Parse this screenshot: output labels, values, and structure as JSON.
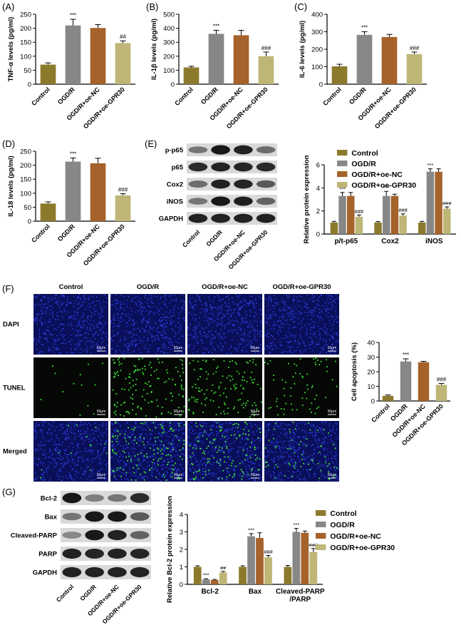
{
  "colors": {
    "control": "#8c7a2c",
    "ogdr": "#878787",
    "oe_nc": "#a5622a",
    "oe_gpr30": "#bdb677",
    "dapi_bg": "#0a0f5a",
    "dapi_dot": "#2b3bd6",
    "tunel_bg": "#050805",
    "tunel_dot": "#3ee03a",
    "axis": "#000000"
  },
  "legend_labels": [
    "Control",
    "OGD/R",
    "OGD/R+oe-NC",
    "OGD/R+oe-GPR30"
  ],
  "groups": [
    "Control",
    "OGD/R",
    "OGD/R+oe-NC",
    "OGD/R+oe-GPR30"
  ],
  "panel_letters": {
    "A": "(A)",
    "B": "(B)",
    "C": "(C)",
    "D": "(D)",
    "E": "(E)",
    "F": "(F)",
    "G": "(G)"
  },
  "blots": {
    "e_rows": [
      "p-p65",
      "p65",
      "Cox2",
      "iNOS",
      "GAPDH"
    ],
    "g_rows": [
      "Bcl-2",
      "Bax",
      "Cleaved-PARP",
      "PARP",
      "GAPDH"
    ],
    "e_intensity": [
      [
        0.45,
        0.95,
        0.9,
        0.5
      ],
      [
        0.85,
        0.9,
        0.88,
        0.86
      ],
      [
        0.5,
        0.9,
        0.88,
        0.6
      ],
      [
        0.45,
        0.95,
        0.92,
        0.55
      ],
      [
        0.9,
        0.9,
        0.9,
        0.9
      ]
    ],
    "g_intensity": [
      [
        0.95,
        0.4,
        0.45,
        0.85
      ],
      [
        0.45,
        0.95,
        0.95,
        0.6
      ],
      [
        0.35,
        0.95,
        0.9,
        0.55
      ],
      [
        0.9,
        0.88,
        0.9,
        0.88
      ],
      [
        0.9,
        0.9,
        0.9,
        0.9
      ]
    ]
  },
  "microscopy": {
    "col_headers": [
      "Control",
      "OGD/R",
      "OGD/R+oe-NC",
      "OGD/R+oe-GPR30"
    ],
    "row_labels": [
      "DAPI",
      "TUNEL",
      "Merged"
    ],
    "scale_bar": "50μm",
    "tunel_density": [
      0.05,
      0.55,
      0.5,
      0.25
    ]
  },
  "chart_data": [
    {
      "id": "A",
      "type": "bar",
      "categories": [
        "Control",
        "OGD/R",
        "OGD/R+oe-NC",
        "OGD/R+oe-GPR30"
      ],
      "values": [
        70,
        210,
        201,
        147
      ],
      "errors": [
        6,
        22,
        12,
        8
      ],
      "annotations": [
        "",
        "***",
        "",
        "##"
      ],
      "ylabel": "TNF-α levels (pg/ml)",
      "ylim": [
        0,
        250
      ],
      "yticks": [
        0,
        50,
        100,
        150,
        200,
        250
      ]
    },
    {
      "id": "B",
      "type": "bar",
      "categories": [
        "Control",
        "OGD/R",
        "OGD/R+oe-NC",
        "OGD/R+oe-GPR30"
      ],
      "values": [
        120,
        360,
        350,
        200
      ],
      "errors": [
        8,
        25,
        35,
        30
      ],
      "annotations": [
        "",
        "***",
        "",
        "###"
      ],
      "ylabel": "IL-1β levels (pg/ml)",
      "ylim": [
        0,
        500
      ],
      "yticks": [
        0,
        100,
        200,
        300,
        400,
        500
      ]
    },
    {
      "id": "C",
      "type": "bar",
      "categories": [
        "Control",
        "OGD/R",
        "OGD/R+oe-NC",
        "OGD/R+oe-GPR30"
      ],
      "values": [
        102,
        282,
        270,
        172
      ],
      "errors": [
        12,
        18,
        15,
        12
      ],
      "annotations": [
        "",
        "***",
        "",
        "###"
      ],
      "ylabel": "IL-6 levels (pg/ml)",
      "ylim": [
        0,
        400
      ],
      "yticks": [
        0,
        100,
        200,
        300,
        400
      ]
    },
    {
      "id": "D",
      "type": "bar",
      "categories": [
        "Control",
        "OGD/R",
        "OGD/R+oe-NC",
        "OGD/R+oe-GPR30"
      ],
      "values": [
        63,
        213,
        207,
        92
      ],
      "errors": [
        6,
        13,
        18,
        6
      ],
      "annotations": [
        "",
        "***",
        "",
        "###"
      ],
      "ylabel": "IL-18 levels (pg/ml)",
      "ylim": [
        0,
        250
      ],
      "yticks": [
        0,
        50,
        100,
        150,
        200,
        250
      ]
    },
    {
      "id": "E",
      "type": "bar",
      "categories": [
        "p/t-p65",
        "Cox2",
        "iNOS"
      ],
      "series": [
        {
          "name": "Control",
          "values": [
            1.0,
            1.0,
            1.0
          ],
          "errors": [
            0.1,
            0.08,
            0.1
          ]
        },
        {
          "name": "OGD/R",
          "values": [
            3.3,
            3.3,
            5.4
          ],
          "errors": [
            0.3,
            0.4,
            0.25
          ]
        },
        {
          "name": "OGD/R+oe-NC",
          "values": [
            3.3,
            3.3,
            5.4
          ],
          "errors": [
            0.3,
            0.15,
            0.25
          ]
        },
        {
          "name": "OGD/R+oe-GPR30",
          "values": [
            1.5,
            1.6,
            2.2
          ],
          "errors": [
            0.15,
            0.15,
            0.15
          ]
        }
      ],
      "annotations": [
        [
          "",
          "***",
          "",
          "###"
        ],
        [
          "",
          "***",
          "",
          "###"
        ],
        [
          "",
          "***",
          "",
          "###"
        ]
      ],
      "ylabel": "Relative protein expression",
      "ylim": [
        0,
        6
      ],
      "yticks": [
        0,
        2,
        4,
        6
      ],
      "legend": "top-right"
    },
    {
      "id": "F",
      "type": "bar",
      "categories": [
        "Control",
        "OGD/R",
        "OGD/R+oe-NC",
        "OGD/R+oe-GPR30"
      ],
      "values": [
        3.5,
        27,
        26.5,
        11
      ],
      "errors": [
        0.6,
        1.8,
        0.6,
        1.0
      ],
      "annotations": [
        "",
        "***",
        "",
        "###"
      ],
      "ylabel": "Cell apoptosis (%)",
      "ylim": [
        0,
        40
      ],
      "yticks": [
        0,
        10,
        20,
        30,
        40
      ]
    },
    {
      "id": "G",
      "type": "bar",
      "categories": [
        "Bcl-2",
        "Bax",
        "Cleaved-PARP\n/PARP"
      ],
      "series": [
        {
          "name": "Control",
          "values": [
            1.0,
            1.0,
            1.0
          ],
          "errors": [
            0.06,
            0.06,
            0.08
          ]
        },
        {
          "name": "OGD/R",
          "values": [
            0.28,
            2.75,
            3.0
          ],
          "errors": [
            0.04,
            0.15,
            0.2
          ]
        },
        {
          "name": "OGD/R+oe-NC",
          "values": [
            0.25,
            2.65,
            2.95
          ],
          "errors": [
            0.03,
            0.3,
            0.1
          ]
        },
        {
          "name": "OGD/R+oe-GPR30",
          "values": [
            0.68,
            1.55,
            1.85
          ],
          "errors": [
            0.06,
            0.1,
            0.2
          ]
        }
      ],
      "annotations": [
        [
          "",
          "***",
          "",
          "##"
        ],
        [
          "",
          "***",
          "",
          "###"
        ],
        [
          "",
          "***",
          "",
          "###"
        ]
      ],
      "ylabel": "Relative Bcl-2 protein expression",
      "ylim": [
        0,
        4
      ],
      "yticks": [
        0,
        1,
        2,
        3,
        4
      ],
      "legend": "top-right"
    }
  ]
}
